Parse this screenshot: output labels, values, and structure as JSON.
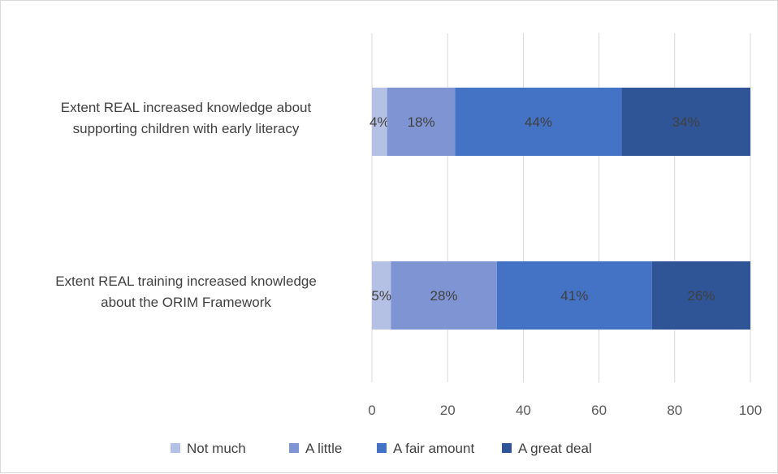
{
  "chart_data": {
    "type": "bar",
    "orientation": "horizontal",
    "stacked": true,
    "categories": [
      "Extent REAL increased knowledge about supporting children with early literacy",
      "Extent REAL training increased knowledge about the ORIM Framework"
    ],
    "category_lines": [
      [
        "Extent REAL increased knowledge about",
        "supporting children with early literacy"
      ],
      [
        "Extent REAL training increased knowledge",
        "about the ORIM Framework"
      ]
    ],
    "series": [
      {
        "name": "Not much",
        "values": [
          4,
          5
        ],
        "labels": [
          "4%",
          "5%"
        ],
        "color": "#b4c0e4",
        "label_color": "#404040"
      },
      {
        "name": "A little",
        "values": [
          18,
          28
        ],
        "labels": [
          "18%",
          "28%"
        ],
        "color": "#7f95d3",
        "label_color": "#404040"
      },
      {
        "name": "A fair amount",
        "values": [
          44,
          41
        ],
        "labels": [
          "44%",
          "41%"
        ],
        "color": "#4472c4",
        "label_color": "#404040"
      },
      {
        "name": "A great deal",
        "values": [
          34,
          26
        ],
        "labels": [
          "34%",
          "26%"
        ],
        "color": "#2f5597",
        "label_color": "#404040"
      }
    ],
    "xlim": [
      0,
      100
    ],
    "xticks": [
      "0",
      "20",
      "40",
      "60",
      "80",
      "100"
    ],
    "grid": true,
    "legend": "bottom",
    "title": "",
    "xlabel": "",
    "ylabel": ""
  }
}
